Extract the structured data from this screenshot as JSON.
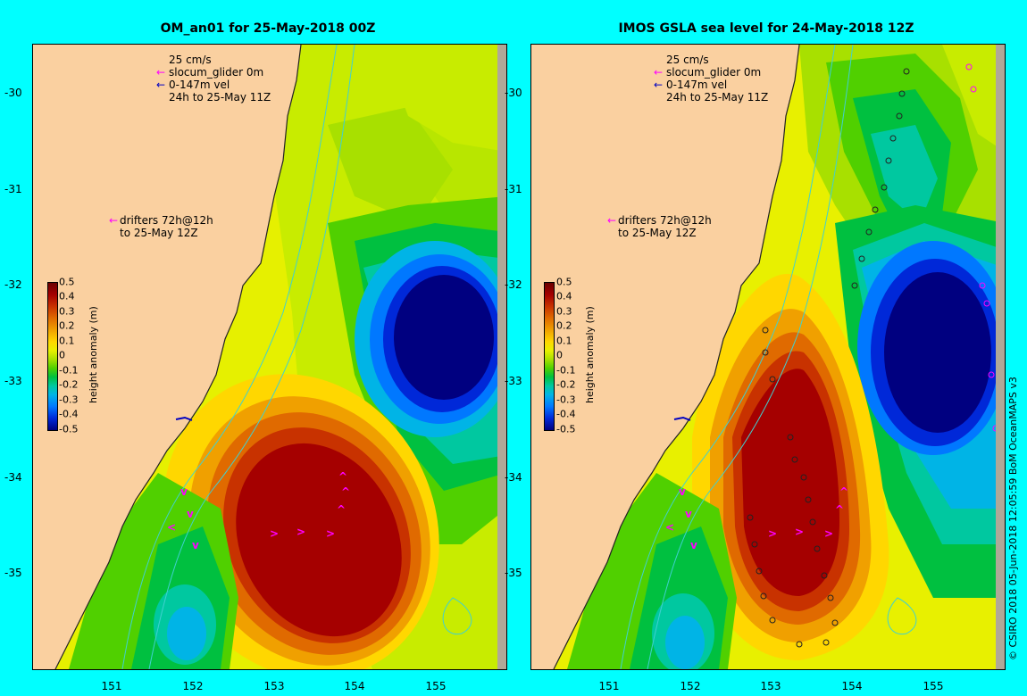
{
  "panels": [
    {
      "title": "OM_an01 for 25-May-2018 00Z",
      "legend": {
        "scale": "25 cm/s",
        "glider": "slocum_glider 0m",
        "vel": "0-147m vel",
        "period": "24h to 25-May 11Z",
        "drifters1": "drifters 72h@12h",
        "drifters2": "to 25-May 12Z"
      }
    },
    {
      "title": "IMOS GSLA sea level  for 24-May-2018 12Z",
      "legend": {
        "scale": "25 cm/s",
        "glider": "slocum_glider 0m",
        "vel": "0-147m vel",
        "period": "24h to 25-May 11Z",
        "drifters1": "drifters 72h@12h",
        "drifters2": "to 25-May 12Z"
      }
    }
  ],
  "axes": {
    "y_ticks": [
      "-30",
      "-31",
      "-32",
      "-33",
      "-34",
      "-35"
    ],
    "x_ticks": [
      "151",
      "152",
      "153",
      "154",
      "155"
    ]
  },
  "colorbar": {
    "ticks": [
      "0.5",
      "0.4",
      "0.3",
      "0.2",
      "0.1",
      "0",
      "-0.1",
      "-0.2",
      "-0.3",
      "-0.4",
      "-0.5"
    ],
    "label": "height anomaly (m)",
    "colors": [
      "#6b0000",
      "#a50000",
      "#c83200",
      "#e06a00",
      "#f0a000",
      "#ffd700",
      "#e8f000",
      "#a8e000",
      "#50d000",
      "#00c040",
      "#00c8a0",
      "#00b4e6",
      "#0078ff",
      "#0028d8",
      "#000080"
    ]
  },
  "credit": "© CSIRO 2018   05-Jun-2018 12:05:59 BoM OceanMAPS v3"
}
